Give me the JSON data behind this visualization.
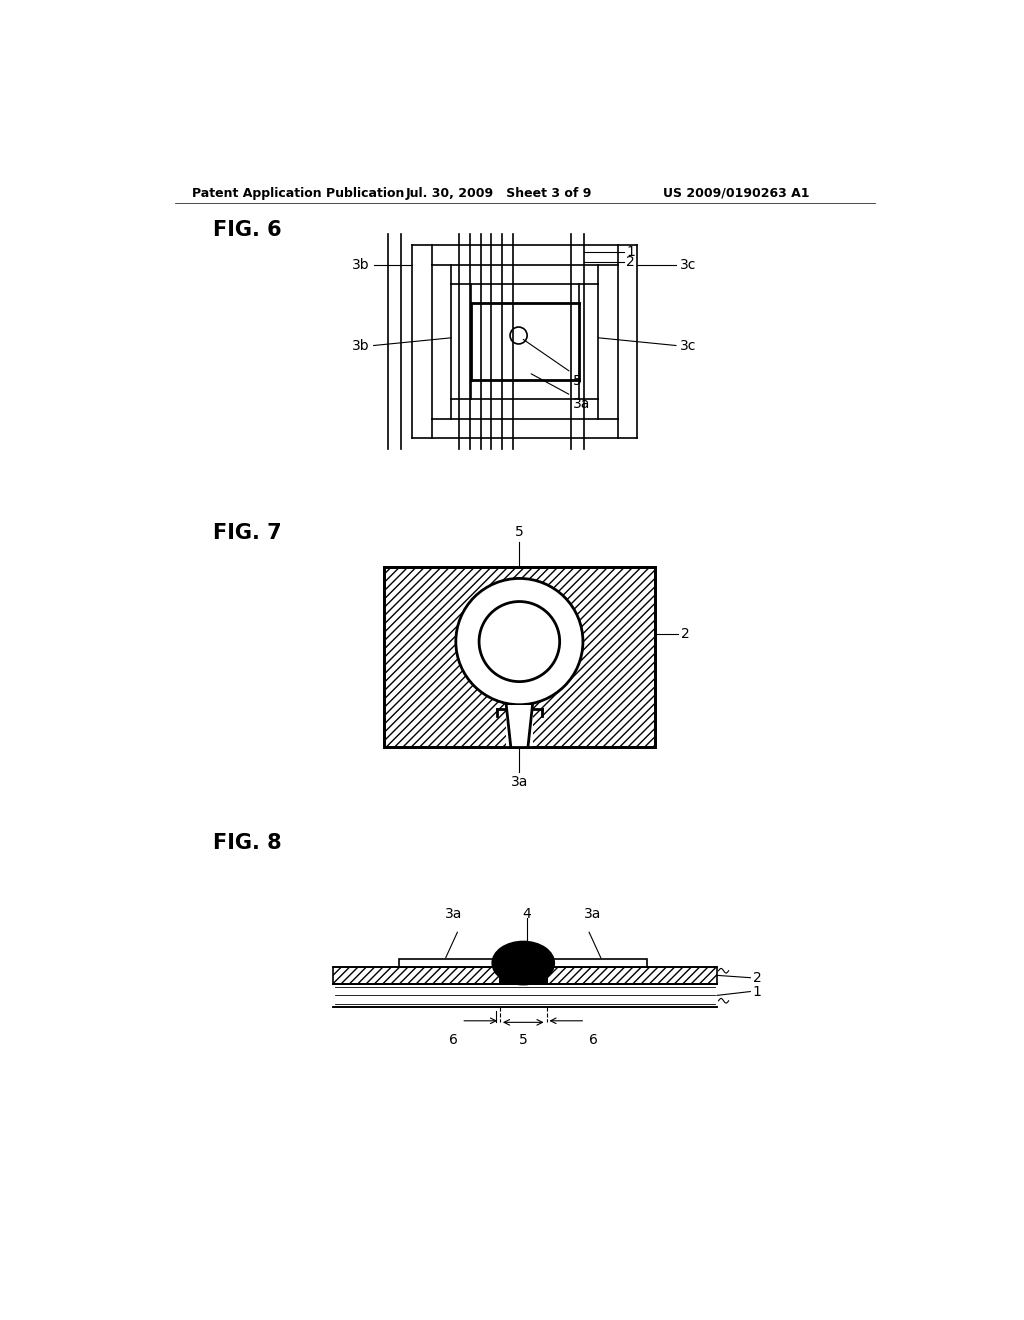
{
  "bg_color": "#ffffff",
  "header_left": "Patent Application Publication",
  "header_mid": "Jul. 30, 2009   Sheet 3 of 9",
  "header_right": "US 2009/0190263 A1",
  "fig6_label": "FIG. 6",
  "fig7_label": "FIG. 7",
  "fig8_label": "FIG. 8",
  "line_color": "#000000",
  "lw": 1.2,
  "lw_thick": 2.0,
  "lw_thin": 0.8
}
